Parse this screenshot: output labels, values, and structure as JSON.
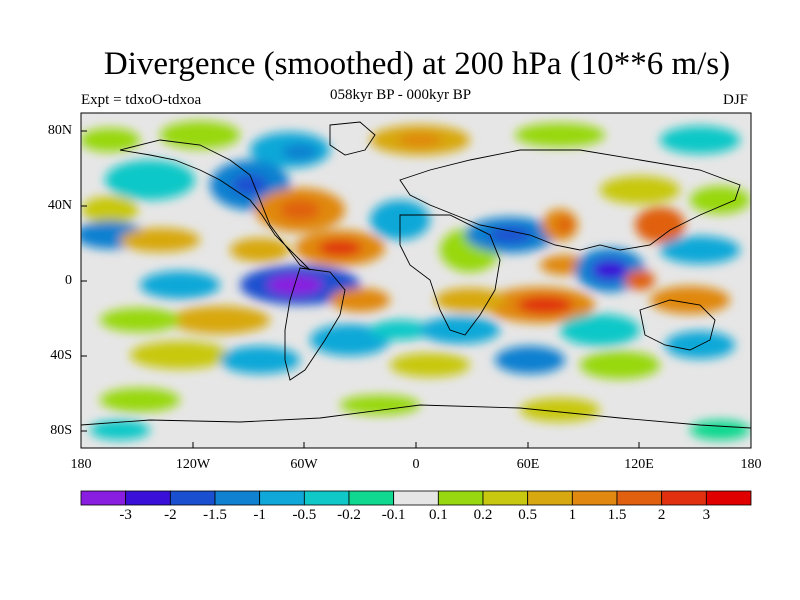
{
  "header": {
    "title": "Divergence (smoothed) at 200 hPa (10**6 m/s)",
    "expt": "Expt = tdxoO-tdxoa",
    "period": "058kyr BP - 000kyr BP",
    "season": "DJF"
  },
  "axes": {
    "lat_labels": [
      "80N",
      "40N",
      "0",
      "40S",
      "80S"
    ],
    "lon_labels": [
      "180",
      "120W",
      "60W",
      "0",
      "60E",
      "120E",
      "180"
    ]
  },
  "colorbar": {
    "colors": [
      "#8a1ee0",
      "#3a10d8",
      "#1a50d0",
      "#1080d0",
      "#10a8d8",
      "#10c8c8",
      "#10d890",
      "#e6e6e6",
      "#98d810",
      "#c8c810",
      "#d8a810",
      "#e08810",
      "#e06010",
      "#e03010",
      "#e00000"
    ],
    "labels": [
      "-3",
      "-2",
      "-1.5",
      "-1",
      "-0.5",
      "-0.2",
      "-0.1",
      "0.1",
      "0.2",
      "0.5",
      "1",
      "1.5",
      "2",
      "3"
    ]
  },
  "map": {
    "neutral_color": "#e6e6e6",
    "coastline_color": "#000000"
  }
}
